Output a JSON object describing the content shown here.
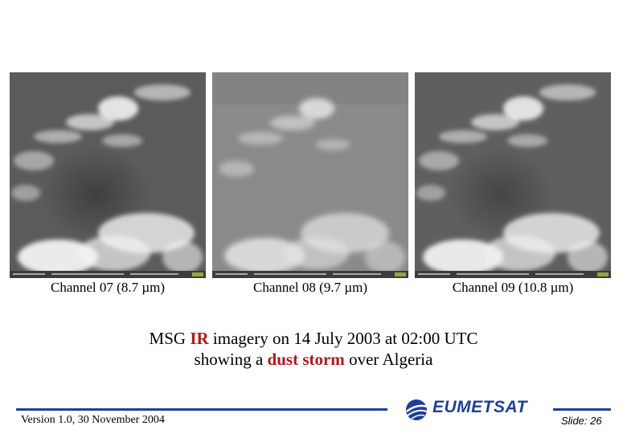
{
  "channels": [
    {
      "label": "Channel 07 (8.7 µm)",
      "tone": "#5b5b5b",
      "cloud": "#f2f2f2"
    },
    {
      "label": "Channel 08 (9.7 µm)",
      "tone": "#8a8a8a",
      "cloud": "#e6e6e6"
    },
    {
      "label": "Channel 09 (10.8 µm)",
      "tone": "#5f5f5f",
      "cloud": "#f0f0f0"
    }
  ],
  "caption": {
    "line1_pre": "MSG ",
    "line1_highlight": "IR",
    "line1_post": " imagery on 14 July 2003 at 02:00 UTC",
    "line2_pre": "showing a ",
    "line2_highlight": "dust storm",
    "line2_post": " over Algeria"
  },
  "footer": {
    "version": "Version 1.0, 30 November 2004",
    "slide": "Slide: 26",
    "logo": "EUMETSAT"
  },
  "colors": {
    "highlight": "#b01818",
    "brand_blue": "#1e3f9b"
  }
}
